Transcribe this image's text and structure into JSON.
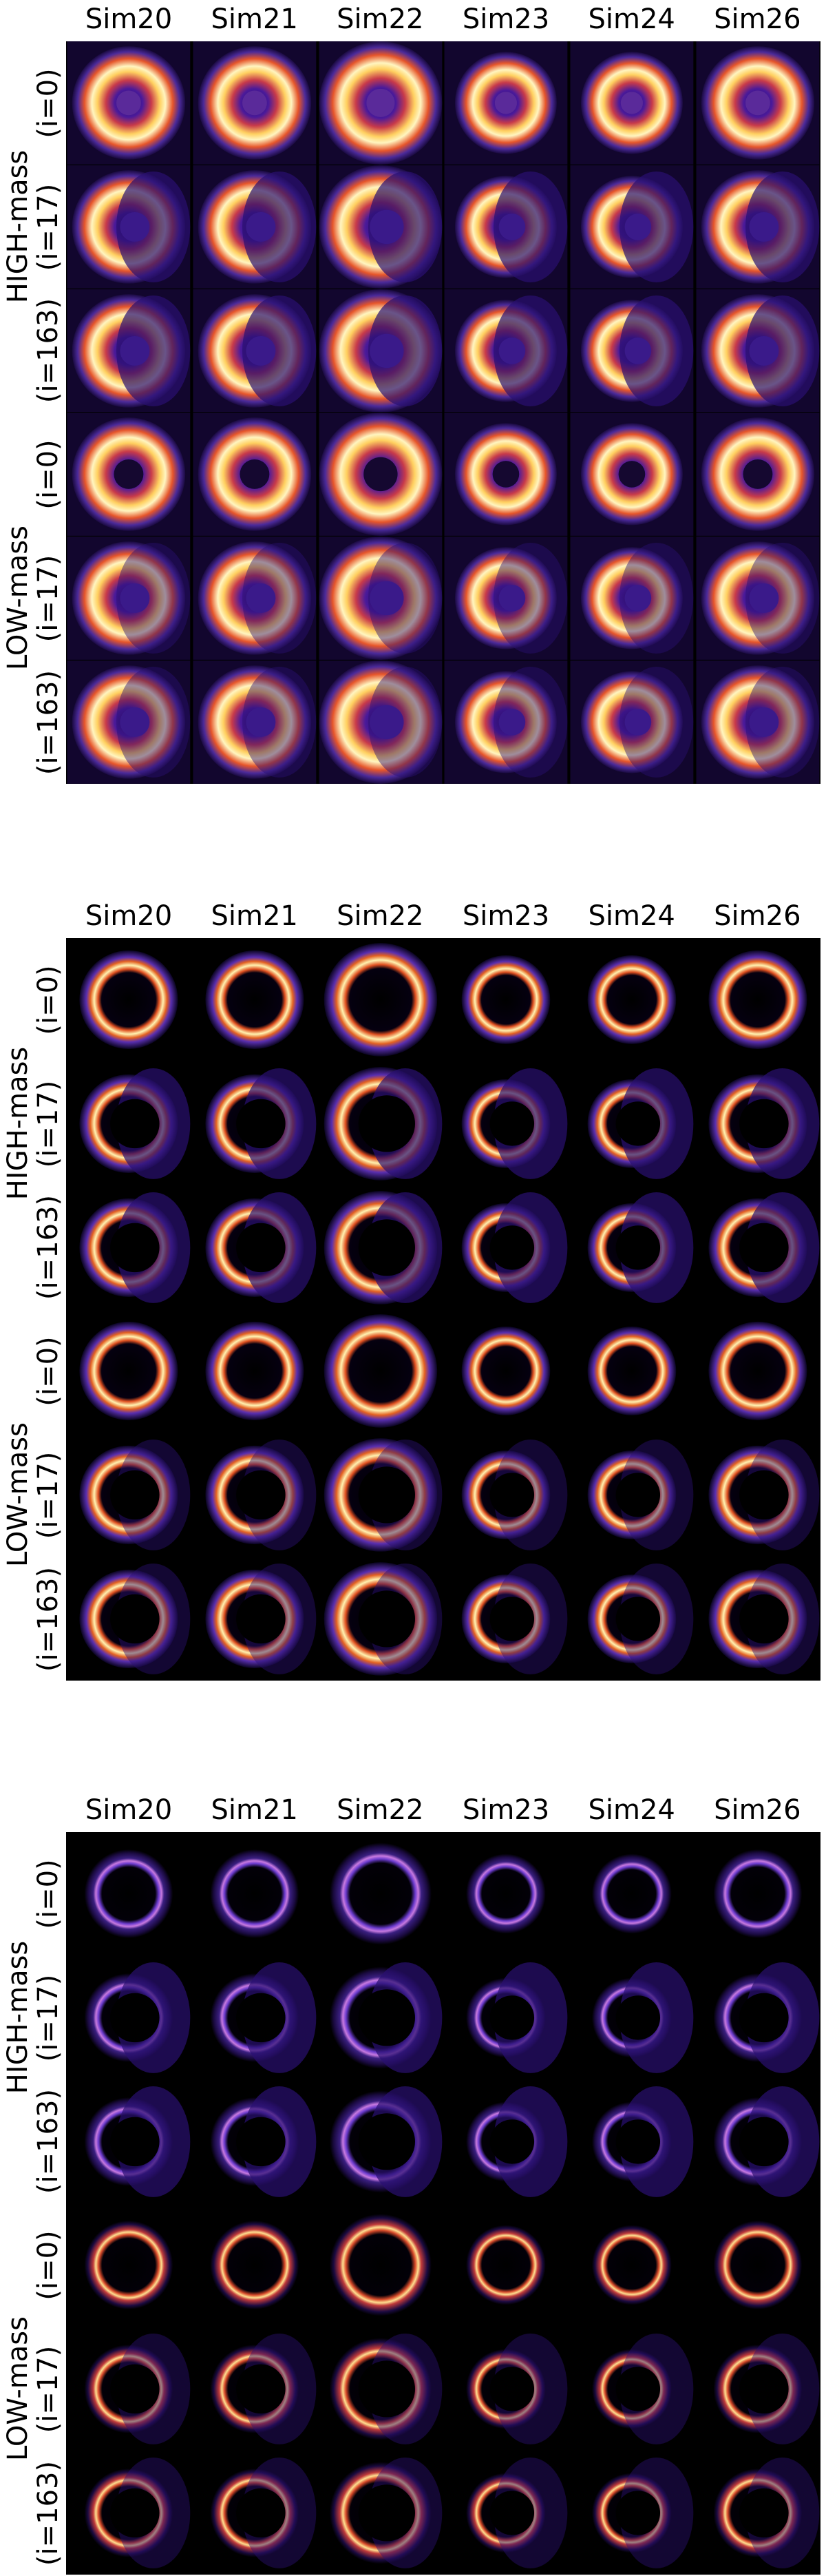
{
  "columns": [
    "Sim20",
    "Sim21",
    "Sim22",
    "Sim23",
    "Sim24",
    "Sim26"
  ],
  "groups": [
    "HIGH-mass",
    "LOW-mass"
  ],
  "inclinations": [
    "(i=0)",
    "(i=17)",
    "(i=163)"
  ],
  "panels": [
    {
      "style": "broad"
    },
    {
      "style": "ring"
    },
    {
      "style": "thin"
    }
  ]
}
